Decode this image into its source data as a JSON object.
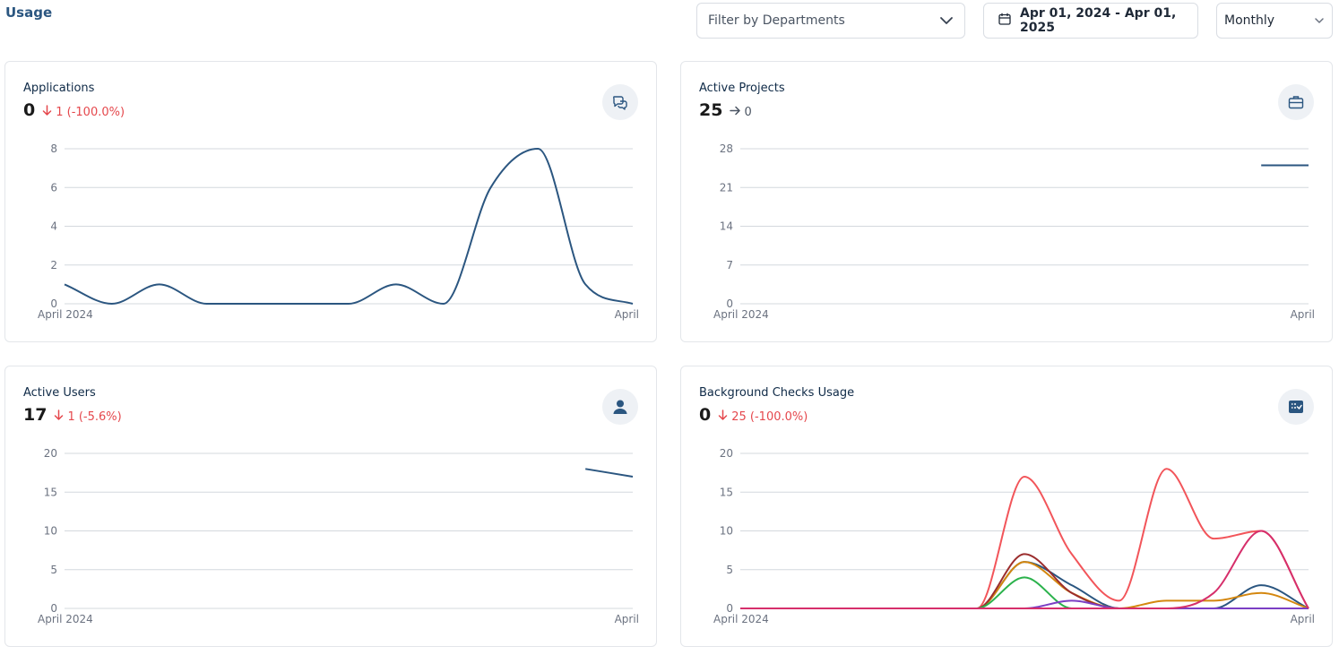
{
  "header": {
    "title": "Usage",
    "department_placeholder": "Filter by Departments",
    "date_range": "Apr 01, 2024 - Apr 01, 2025",
    "period": "Monthly"
  },
  "colors": {
    "primary": "#2b5680",
    "down": "#e5484d",
    "grid": "#d4d8dd"
  },
  "cards": [
    {
      "title": "Applications",
      "value": "0",
      "change": "1 (-100.0%)",
      "trend": "down",
      "icon": "chat-bubbles-icon"
    },
    {
      "title": "Active Projects",
      "value": "25",
      "change": "0",
      "trend": "flat",
      "icon": "briefcase-icon"
    },
    {
      "title": "Active Users",
      "value": "17",
      "change": "1 (-5.6%)",
      "trend": "down",
      "icon": "user-icon"
    },
    {
      "title": "Background Checks Usage",
      "value": "0",
      "change": "25 (-100.0%)",
      "trend": "down",
      "icon": "checklist-icon"
    }
  ],
  "chart_data": [
    {
      "type": "line",
      "x_labels": [
        "April 2024",
        "April"
      ],
      "ylim": [
        0,
        8
      ],
      "yticks": [
        0,
        2,
        4,
        6,
        8
      ],
      "series": [
        {
          "color": "#2b5680",
          "values": [
            1,
            0,
            1,
            0,
            0,
            0,
            0,
            1,
            0,
            6,
            8,
            1,
            0
          ]
        }
      ]
    },
    {
      "type": "line",
      "x_labels": [
        "April 2024",
        "April"
      ],
      "ylim": [
        0,
        28
      ],
      "yticks": [
        0,
        7,
        14,
        21,
        28
      ],
      "series": [
        {
          "color": "#2b5680",
          "values": [
            null,
            null,
            null,
            null,
            null,
            null,
            null,
            null,
            null,
            null,
            null,
            25,
            25
          ]
        }
      ]
    },
    {
      "type": "line",
      "x_labels": [
        "April 2024",
        "April"
      ],
      "ylim": [
        0,
        20
      ],
      "yticks": [
        0,
        5,
        10,
        15,
        20
      ],
      "series": [
        {
          "color": "#2b5680",
          "values": [
            null,
            null,
            null,
            null,
            null,
            null,
            null,
            null,
            null,
            null,
            null,
            18,
            17
          ]
        }
      ]
    },
    {
      "type": "line",
      "x_labels": [
        "April 2024",
        "April"
      ],
      "ylim": [
        0,
        20
      ],
      "yticks": [
        0,
        5,
        10,
        15,
        20
      ],
      "series": [
        {
          "color": "#f2555a",
          "values": [
            0,
            0,
            0,
            0,
            0,
            0,
            17,
            7,
            1,
            18,
            9,
            10,
            0
          ]
        },
        {
          "color": "#2b5680",
          "values": [
            0,
            0,
            0,
            0,
            0,
            0,
            6,
            3,
            0,
            0,
            0,
            3,
            0
          ]
        },
        {
          "color": "#d4870f",
          "values": [
            0,
            0,
            0,
            0,
            0,
            0,
            6,
            2,
            0,
            1,
            1,
            2,
            0
          ]
        },
        {
          "color": "#9b2d2d",
          "values": [
            0,
            0,
            0,
            0,
            0,
            0,
            7,
            2,
            0,
            0,
            0,
            0,
            0
          ]
        },
        {
          "color": "#2bb24c",
          "values": [
            0,
            0,
            0,
            0,
            0,
            0,
            4,
            0,
            0,
            0,
            0,
            0,
            0
          ]
        },
        {
          "color": "#7b3fc4",
          "values": [
            0,
            0,
            0,
            0,
            0,
            0,
            0,
            1,
            0,
            0,
            0,
            0,
            0
          ]
        },
        {
          "color": "#d62f6b",
          "values": [
            0,
            0,
            0,
            0,
            0,
            0,
            0,
            0,
            0,
            0,
            2,
            10,
            0
          ]
        }
      ]
    }
  ]
}
